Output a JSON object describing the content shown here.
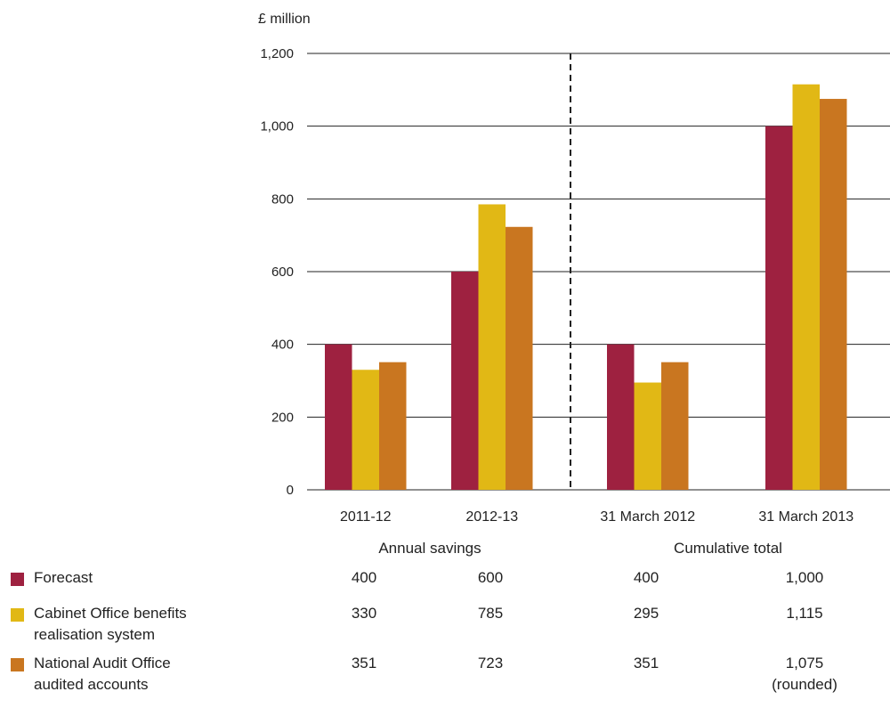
{
  "chart_data": {
    "type": "bar",
    "ylabel": "£ million",
    "ylim": [
      0,
      1200
    ],
    "yticks": [
      "0",
      "200",
      "400",
      "600",
      "800",
      "1,000",
      "1,200"
    ],
    "categories": [
      "2011-12",
      "2012-13",
      "31 March 2012",
      "31 March 2013"
    ],
    "groups": [
      {
        "label": "Annual savings",
        "categories": [
          "2011-12",
          "2012-13"
        ]
      },
      {
        "label": "Cumulative total",
        "categories": [
          "31 March 2012",
          "31 March 2013"
        ]
      }
    ],
    "series": [
      {
        "name": "Forecast",
        "color": "#9e2140",
        "values": [
          400,
          600,
          400,
          1000
        ],
        "value_labels": [
          "400",
          "600",
          "400",
          "1,000"
        ]
      },
      {
        "name": "Cabinet Office benefits realisation system",
        "color": "#e1b815",
        "values": [
          330,
          785,
          295,
          1115
        ],
        "value_labels": [
          "330",
          "785",
          "295",
          "1,115"
        ]
      },
      {
        "name": "National Audit Office audited accounts",
        "color": "#c97620",
        "values": [
          351,
          723,
          351,
          1075
        ],
        "value_labels": [
          "351",
          "723",
          "351",
          "1,075"
        ]
      }
    ],
    "legend_names_wrapped": [
      [
        "Forecast"
      ],
      [
        "Cabinet Office benefits",
        "realisation system"
      ],
      [
        "National Audit Office",
        "audited accounts"
      ]
    ],
    "annotations": [
      {
        "series": 2,
        "category": 3,
        "text": "(rounded)"
      }
    ],
    "grid": true
  }
}
